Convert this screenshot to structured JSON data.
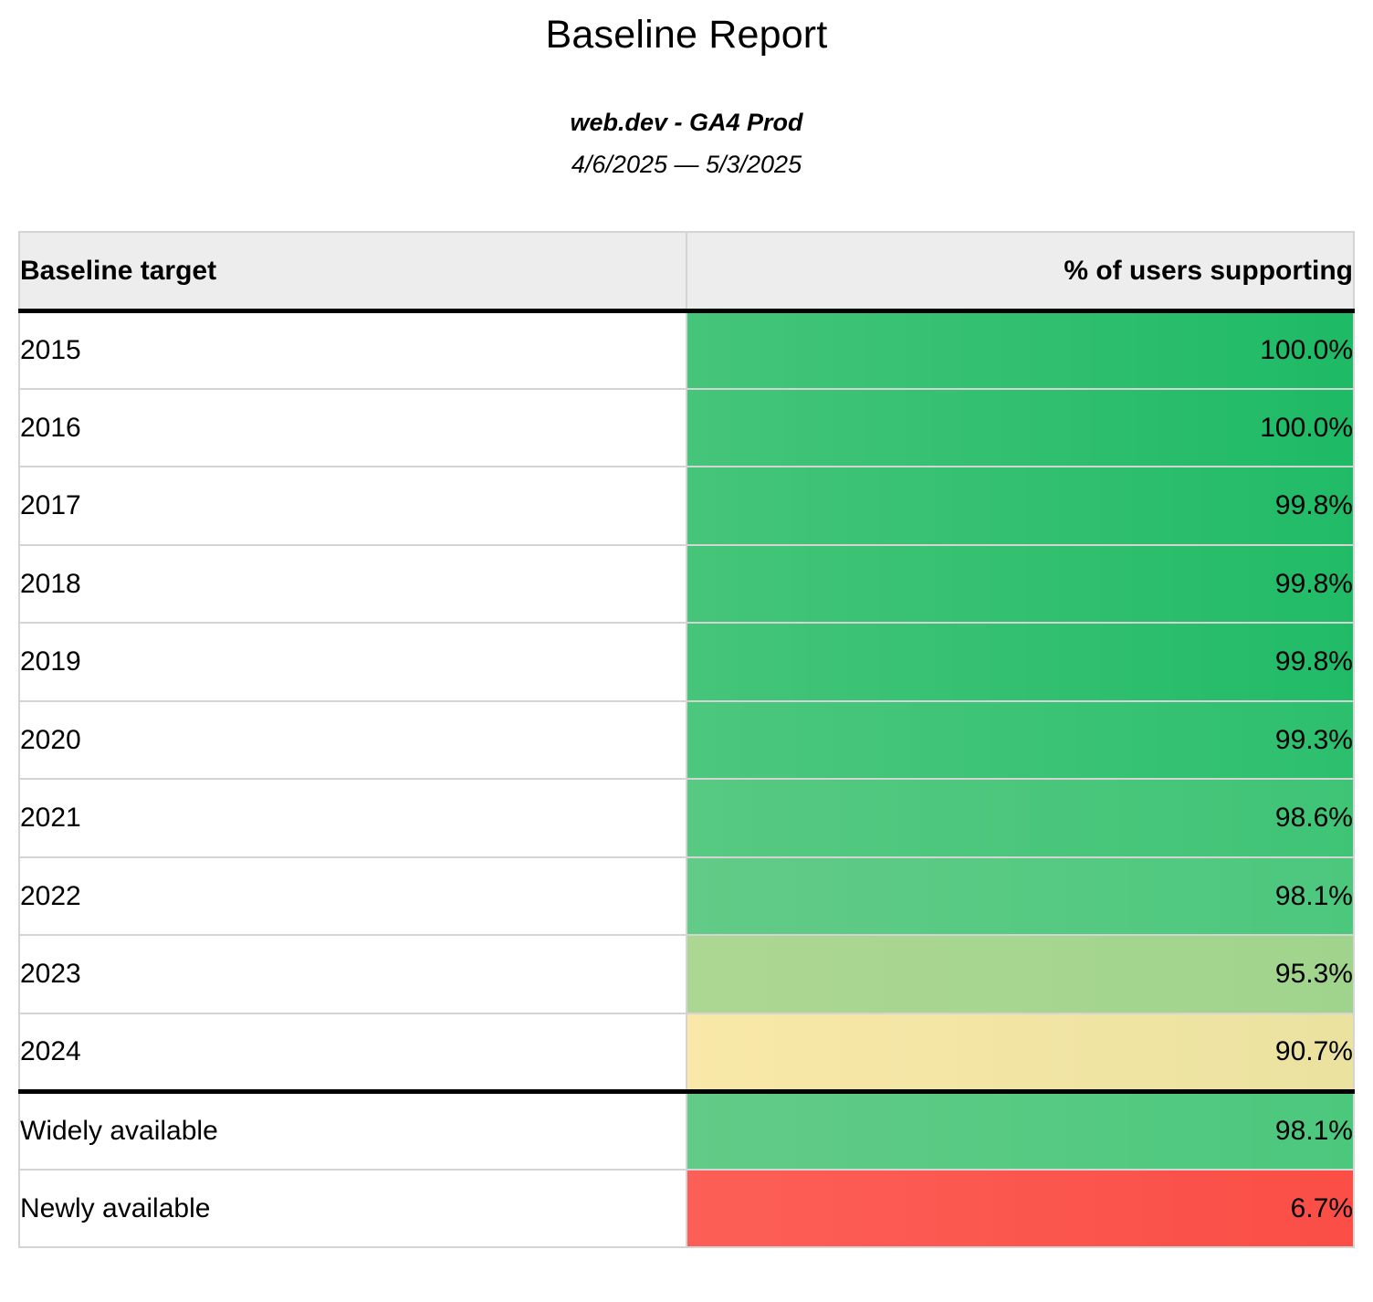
{
  "report": {
    "title": "Baseline Report",
    "subtitle": "web.dev - GA4 Prod",
    "date_range": "4/6/2025 — 5/3/2025"
  },
  "table": {
    "columns": [
      "Baseline target",
      "% of users supporting"
    ],
    "header_bg": "#ededed",
    "divider_color": "#000000",
    "grid_color": "#d4d4d4",
    "rows": [
      {
        "target": "2015",
        "value": "100.0%",
        "color_left": "#45c57a",
        "color_right": "#1eba65",
        "group_start": false
      },
      {
        "target": "2016",
        "value": "100.0%",
        "color_left": "#45c57a",
        "color_right": "#1eba65",
        "group_start": false
      },
      {
        "target": "2017",
        "value": "99.8%",
        "color_left": "#45c57a",
        "color_right": "#21bb67",
        "group_start": false
      },
      {
        "target": "2018",
        "value": "99.8%",
        "color_left": "#45c57a",
        "color_right": "#21bb67",
        "group_start": false
      },
      {
        "target": "2019",
        "value": "99.8%",
        "color_left": "#45c57a",
        "color_right": "#21bb67",
        "group_start": false
      },
      {
        "target": "2020",
        "value": "99.3%",
        "color_left": "#4cc77e",
        "color_right": "#2cbf6e",
        "group_start": false
      },
      {
        "target": "2021",
        "value": "98.6%",
        "color_left": "#57c982",
        "color_right": "#3fc476",
        "group_start": false
      },
      {
        "target": "2022",
        "value": "98.1%",
        "color_left": "#62cb87",
        "color_right": "#4cc87d",
        "group_start": false
      },
      {
        "target": "2023",
        "value": "95.3%",
        "color_left": "#acd792",
        "color_right": "#a0d48c",
        "group_start": false
      },
      {
        "target": "2024",
        "value": "90.7%",
        "color_left": "#f9e8a8",
        "color_right": "#ebe2a0",
        "group_start": false
      },
      {
        "target": "Widely available",
        "value": "98.1%",
        "color_left": "#62cb87",
        "color_right": "#4cc87d",
        "group_start": true
      },
      {
        "target": "Newly available",
        "value": "6.7%",
        "color_left": "#fc5f57",
        "color_right": "#fa4e46",
        "group_start": false
      }
    ]
  },
  "chart_data": {
    "type": "table",
    "title": "Baseline Report",
    "subtitle": "web.dev - GA4 Prod",
    "date_range": "4/6/2025 — 5/3/2025",
    "columns": [
      "Baseline target",
      "% of users supporting"
    ],
    "rows": [
      [
        "2015",
        100.0
      ],
      [
        "2016",
        100.0
      ],
      [
        "2017",
        99.8
      ],
      [
        "2018",
        99.8
      ],
      [
        "2019",
        99.8
      ],
      [
        "2020",
        99.3
      ],
      [
        "2021",
        98.6
      ],
      [
        "2022",
        98.1
      ],
      [
        "2023",
        95.3
      ],
      [
        "2024",
        90.7
      ],
      [
        "Widely available",
        98.1
      ],
      [
        "Newly available",
        6.7
      ]
    ],
    "value_unit": "%",
    "color_encoding": "heatmap green(high) → yellow(~90) → red(low)"
  }
}
